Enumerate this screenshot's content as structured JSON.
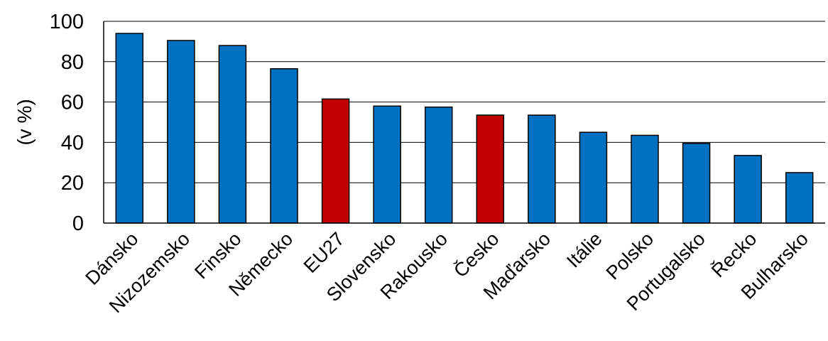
{
  "chart_data": {
    "type": "bar",
    "title": "",
    "xlabel": "",
    "ylabel": "(v %)",
    "ylim": [
      0,
      100
    ],
    "yticks": [
      0,
      20,
      40,
      60,
      80,
      100
    ],
    "grid": true,
    "categories": [
      "Dánsko",
      "Nizozemsko",
      "Finsko",
      "Německo",
      "EU27",
      "Slovensko",
      "Rakousko",
      "Česko",
      "Maďarsko",
      "Itálie",
      "Polsko",
      "Portugalsko",
      "Řecko",
      "Bulharsko"
    ],
    "values": [
      94,
      90.5,
      88,
      76.5,
      61.5,
      58,
      57.5,
      53.5,
      53.5,
      45,
      43.5,
      39.5,
      33.5,
      25
    ],
    "highlight": [
      "EU27",
      "Česko"
    ],
    "colors": {
      "bar": "#0070c0",
      "highlight": "#c00000",
      "grid": "#000000",
      "stroke": "#000000"
    }
  }
}
